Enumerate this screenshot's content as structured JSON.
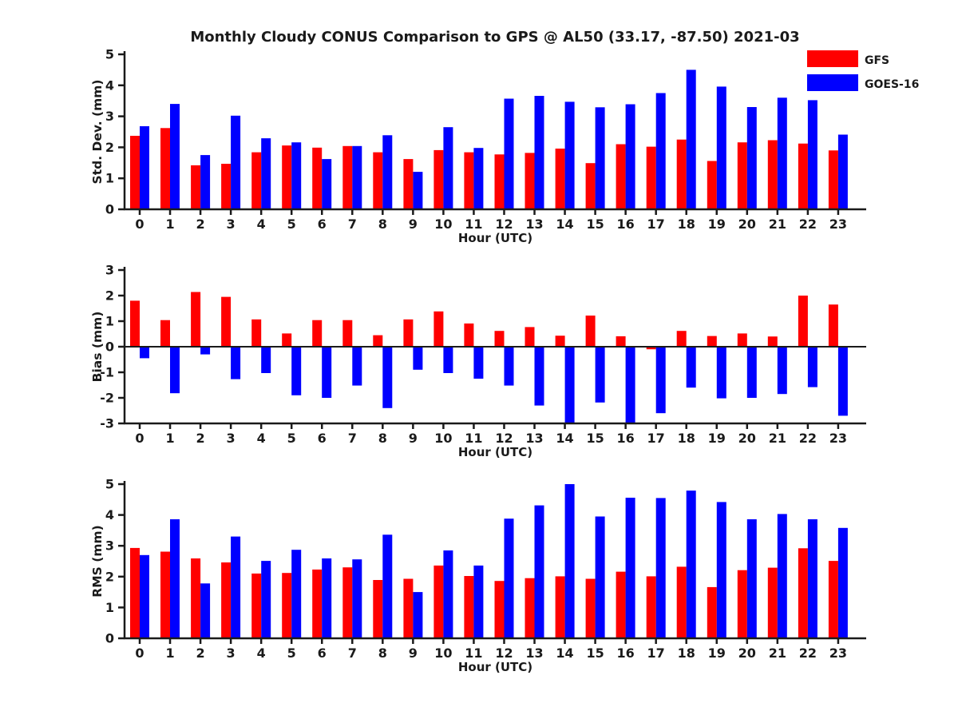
{
  "title": "Monthly Cloudy CONUS Comparison to GPS @ AL50 (33.17, -87.50) 2021-03",
  "colors": {
    "gfs": "#ff0000",
    "goes16": "#0000ff",
    "axis": "#1a1a1a",
    "background": "#ffffff"
  },
  "legend": {
    "position": "top-right",
    "entries": [
      "GFS",
      "GOES-16"
    ]
  },
  "chart_data": [
    {
      "type": "bar",
      "title": "",
      "xlabel": "Hour (UTC)",
      "ylabel": "Std. Dev. (mm)",
      "ylim": [
        0,
        5
      ],
      "yticks": [
        0,
        1,
        2,
        3,
        4,
        5
      ],
      "grid": false,
      "legend_position": "top-right",
      "categories": [
        "0",
        "1",
        "2",
        "3",
        "4",
        "5",
        "6",
        "7",
        "8",
        "9",
        "10",
        "11",
        "12",
        "13",
        "14",
        "15",
        "16",
        "17",
        "18",
        "19",
        "20",
        "21",
        "22",
        "23"
      ],
      "series": [
        {
          "name": "GFS",
          "color": "#ff0000",
          "values": [
            2.37,
            2.62,
            1.42,
            1.47,
            1.84,
            2.06,
            1.99,
            2.04,
            1.84,
            1.62,
            1.91,
            1.84,
            1.77,
            1.82,
            1.96,
            1.49,
            2.1,
            2.02,
            2.25,
            1.56,
            2.16,
            2.23,
            2.12,
            1.9
          ]
        },
        {
          "name": "GOES-16",
          "color": "#0000ff",
          "values": [
            2.68,
            3.4,
            1.75,
            3.02,
            2.29,
            2.16,
            1.62,
            2.04,
            2.39,
            1.21,
            2.65,
            1.98,
            3.57,
            3.66,
            3.47,
            3.29,
            3.39,
            3.75,
            4.5,
            3.96,
            3.3,
            3.6,
            3.52,
            2.41
          ]
        }
      ]
    },
    {
      "type": "bar",
      "title": "",
      "xlabel": "Hour (UTC)",
      "ylabel": "Bias (mm)",
      "ylim": [
        -3,
        3
      ],
      "yticks": [
        -3,
        -2,
        -1,
        0,
        1,
        2,
        3
      ],
      "grid": false,
      "zero_line": true,
      "categories": [
        "0",
        "1",
        "2",
        "3",
        "4",
        "5",
        "6",
        "7",
        "8",
        "9",
        "10",
        "11",
        "12",
        "13",
        "14",
        "15",
        "16",
        "17",
        "18",
        "19",
        "20",
        "21",
        "22",
        "23"
      ],
      "series": [
        {
          "name": "GFS",
          "color": "#ff0000",
          "values": [
            1.8,
            1.04,
            2.14,
            1.95,
            1.07,
            0.52,
            1.04,
            1.04,
            0.45,
            1.07,
            1.38,
            0.91,
            0.62,
            0.77,
            0.43,
            1.22,
            0.41,
            -0.1,
            0.62,
            0.42,
            0.52,
            0.4,
            2.0,
            1.65
          ]
        },
        {
          "name": "GOES-16",
          "color": "#0000ff",
          "values": [
            -0.45,
            -1.82,
            -0.3,
            -1.27,
            -1.03,
            -1.9,
            -2.0,
            -1.52,
            -2.4,
            -0.9,
            -1.03,
            -1.25,
            -1.52,
            -2.3,
            -3.0,
            -2.18,
            -3.0,
            -2.6,
            -1.6,
            -2.02,
            -2.0,
            -1.85,
            -1.58,
            -2.7
          ]
        }
      ]
    },
    {
      "type": "bar",
      "title": "",
      "xlabel": "Hour (UTC)",
      "ylabel": "RMS (mm)",
      "ylim": [
        0,
        5
      ],
      "yticks": [
        0,
        1,
        2,
        3,
        4,
        5
      ],
      "grid": false,
      "categories": [
        "0",
        "1",
        "2",
        "3",
        "4",
        "5",
        "6",
        "7",
        "8",
        "9",
        "10",
        "11",
        "12",
        "13",
        "14",
        "15",
        "16",
        "17",
        "18",
        "19",
        "20",
        "21",
        "22",
        "23"
      ],
      "series": [
        {
          "name": "GFS",
          "color": "#ff0000",
          "values": [
            2.93,
            2.81,
            2.59,
            2.46,
            2.1,
            2.12,
            2.23,
            2.3,
            1.89,
            1.93,
            2.36,
            2.02,
            1.86,
            1.95,
            2.01,
            1.93,
            2.16,
            2.01,
            2.32,
            1.66,
            2.21,
            2.29,
            2.92,
            2.51
          ]
        },
        {
          "name": "GOES-16",
          "color": "#0000ff",
          "values": [
            2.7,
            3.86,
            1.78,
            3.3,
            2.51,
            2.87,
            2.59,
            2.56,
            3.36,
            1.5,
            2.85,
            2.36,
            3.88,
            4.31,
            5.0,
            3.95,
            4.56,
            4.55,
            4.79,
            4.42,
            3.86,
            4.03,
            3.86,
            3.58
          ]
        }
      ]
    }
  ]
}
